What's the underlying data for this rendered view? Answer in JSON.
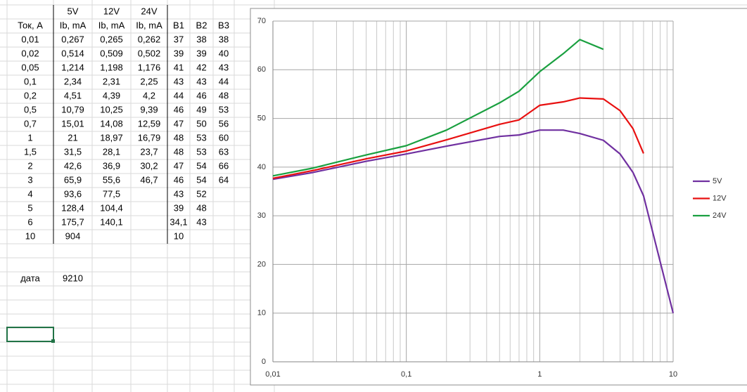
{
  "table": {
    "header_rows": [
      [
        null,
        "5V",
        "12V",
        "24V"
      ],
      [
        "Ток, А",
        "Ib, mA",
        "Ib, mA",
        "Ib, mA",
        "B1",
        "B2",
        "B3"
      ]
    ],
    "rows": [
      [
        "0,01",
        "0,267",
        "0,265",
        "0,262",
        "37",
        "38",
        "38"
      ],
      [
        "0,02",
        "0,514",
        "0,509",
        "0,502",
        "39",
        "39",
        "40"
      ],
      [
        "0,05",
        "1,214",
        "1,198",
        "1,176",
        "41",
        "42",
        "43"
      ],
      [
        "0,1",
        "2,34",
        "2,31",
        "2,25",
        "43",
        "43",
        "44"
      ],
      [
        "0,2",
        "4,51",
        "4,39",
        "4,2",
        "44",
        "46",
        "48"
      ],
      [
        "0,5",
        "10,79",
        "10,25",
        "9,39",
        "46",
        "49",
        "53"
      ],
      [
        "0,7",
        "15,01",
        "14,08",
        "12,59",
        "47",
        "50",
        "56"
      ],
      [
        "1",
        "21",
        "18,97",
        "16,79",
        "48",
        "53",
        "60"
      ],
      [
        "1,5",
        "31,5",
        "28,1",
        "23,7",
        "48",
        "53",
        "63"
      ],
      [
        "2",
        "42,6",
        "36,9",
        "30,2",
        "47",
        "54",
        "66"
      ],
      [
        "3",
        "65,9",
        "55,6",
        "46,7",
        "46",
        "54",
        "64"
      ],
      [
        "4",
        "93,6",
        "77,5",
        null,
        "43",
        "52",
        null
      ],
      [
        "5",
        "128,4",
        "104,4",
        null,
        "39",
        "48",
        null
      ],
      [
        "6",
        "175,7",
        "140,1",
        null,
        "34,1",
        "43",
        null
      ],
      [
        "10",
        "904",
        null,
        null,
        "10",
        null,
        null
      ]
    ],
    "footer": {
      "label": "дата",
      "value": "9210"
    }
  },
  "chart_data": {
    "type": "line",
    "x": [
      0.01,
      0.02,
      0.05,
      0.1,
      0.2,
      0.5,
      0.7,
      1,
      1.5,
      2,
      3,
      4,
      5,
      6,
      10
    ],
    "series": [
      {
        "name": "5V",
        "color": "#7030a0",
        "values": [
          37.5,
          38.9,
          41.2,
          42.7,
          44.3,
          46.3,
          46.6,
          47.6,
          47.6,
          46.9,
          45.5,
          42.7,
          38.9,
          34.1,
          10
        ]
      },
      {
        "name": "12V",
        "color": "#e81010",
        "values": [
          37.7,
          39.3,
          41.7,
          43.3,
          45.6,
          48.8,
          49.7,
          52.7,
          53.4,
          54.2,
          54,
          51.6,
          47.9,
          42.8,
          null
        ]
      },
      {
        "name": "24V",
        "color": "#1aa040",
        "values": [
          38.2,
          39.8,
          42.5,
          44.4,
          47.6,
          53.2,
          55.6,
          59.6,
          63.3,
          66.2,
          64.2,
          null,
          null,
          null,
          null
        ]
      }
    ],
    "xlog": true,
    "xlim": [
      0.01,
      10
    ],
    "xticks": [
      {
        "value": 0.01,
        "label": "0,01"
      },
      {
        "value": 0.1,
        "label": "0,1"
      },
      1,
      10
    ],
    "ylim": [
      0,
      70
    ],
    "yticks": [
      0,
      10,
      20,
      30,
      40,
      50,
      60,
      70
    ],
    "grid": true,
    "minor_grid": true,
    "legend": "right"
  }
}
